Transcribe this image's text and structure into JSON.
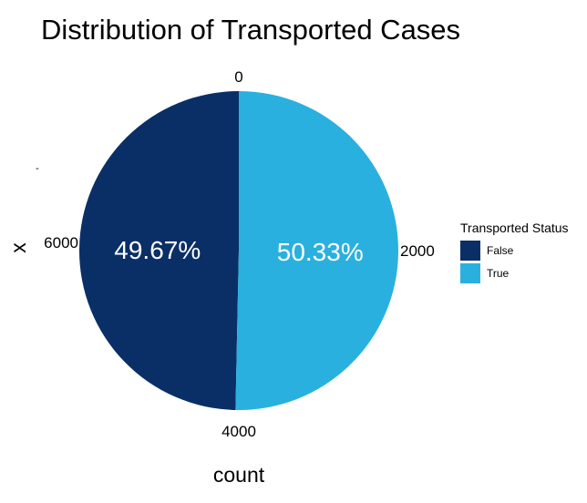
{
  "chart_data": {
    "type": "pie",
    "title": "Distribution of Transported Cases",
    "xlabel": "count",
    "ylabel": "x",
    "y_tick_label": "-",
    "angular_ticks": [
      "0",
      "2000",
      "4000",
      "6000"
    ],
    "legend": {
      "title": "Transported Status",
      "position": "right"
    },
    "categories": [
      "False",
      "True"
    ],
    "values": [
      49.67,
      50.33
    ],
    "labels": [
      "49.67%",
      "50.33%"
    ],
    "colors": [
      "#0A2F66",
      "#2AB0DF"
    ],
    "background": "#ffffff",
    "grid": false
  }
}
